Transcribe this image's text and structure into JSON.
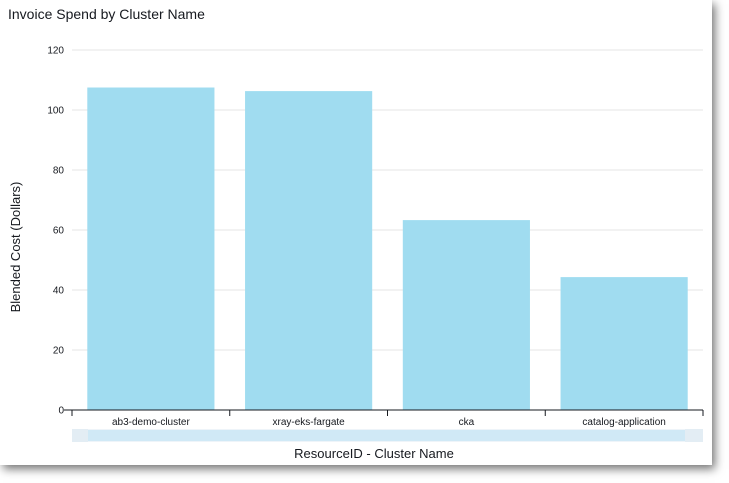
{
  "chart_data": {
    "type": "bar",
    "title": "Invoice Spend by Cluster Name",
    "xlabel": "ResourceID - Cluster Name",
    "ylabel": "Blended Cost (Dollars)",
    "categories": [
      "ab3-demo-cluster",
      "xray-eks-fargate",
      "cka",
      "catalog-application"
    ],
    "values": [
      107.5,
      106.3,
      63.3,
      44.3
    ],
    "ylim": [
      0,
      120
    ],
    "yticks": [
      0,
      20,
      40,
      60,
      80,
      100,
      120
    ],
    "grid": true,
    "bar_color": "#a0dcf0"
  },
  "colors": {
    "grid": "#e5e5e5",
    "axis": "#16191f",
    "scrollbar_track": "#eef4f9",
    "scrollbar_thumb": "#d0e9f6"
  }
}
